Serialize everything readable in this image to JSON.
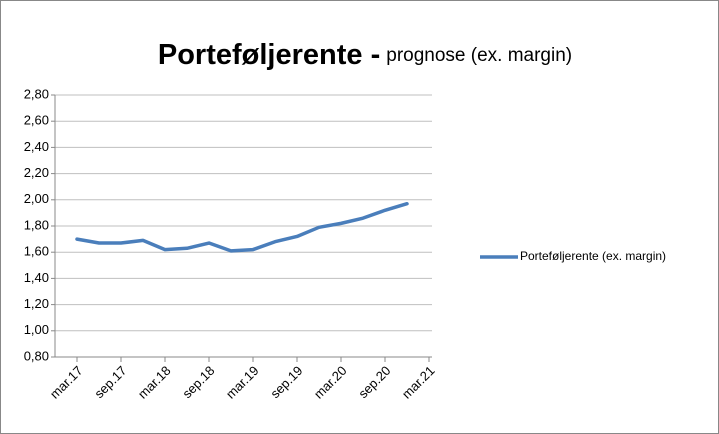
{
  "chart_data": {
    "type": "line",
    "title": "Porteføljerente -",
    "subtitle": "prognose (ex. margin)",
    "categories": [
      "mar.17",
      null,
      "sep.17",
      null,
      "mar.18",
      null,
      "sep.18",
      null,
      "mar.19",
      null,
      "sep.19",
      null,
      "mar.20",
      null,
      "sep.20",
      null,
      "mar.21"
    ],
    "series": [
      {
        "name": "Porteføljerente (ex. margin)",
        "color": "#4a7ebb",
        "values": [
          1.7,
          1.67,
          1.67,
          1.69,
          1.62,
          1.63,
          1.67,
          1.61,
          1.62,
          1.68,
          1.72,
          1.79,
          1.82,
          1.86,
          1.92,
          1.97,
          null
        ]
      }
    ],
    "ylim": [
      0.8,
      2.8
    ],
    "yticks": [
      {
        "value": 0.8,
        "label": "0,80"
      },
      {
        "value": 1.0,
        "label": "1,00"
      },
      {
        "value": 1.2,
        "label": "1,20"
      },
      {
        "value": 1.4,
        "label": "1,40"
      },
      {
        "value": 1.6,
        "label": "1,60"
      },
      {
        "value": 1.8,
        "label": "1,80"
      },
      {
        "value": 2.0,
        "label": "2,00"
      },
      {
        "value": 2.2,
        "label": "2,20"
      },
      {
        "value": 2.4,
        "label": "2,40"
      },
      {
        "value": 2.6,
        "label": "2,60"
      },
      {
        "value": 2.8,
        "label": "2,80"
      }
    ],
    "grid": true,
    "legend": "right"
  }
}
